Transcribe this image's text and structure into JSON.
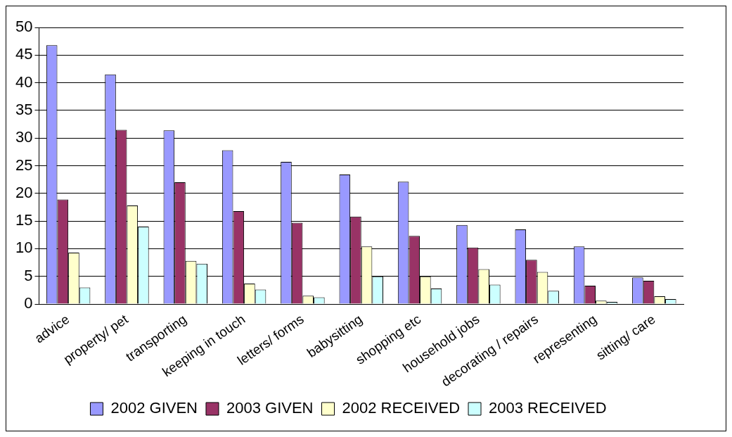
{
  "chart_data": {
    "type": "bar",
    "categories": [
      "advice",
      "property/ pet",
      "transporting",
      "keeping in touch",
      "letters/ forms",
      "babysitting",
      "shopping etc",
      "household jobs",
      "decorating / repairs",
      "representing",
      "sitting/ care"
    ],
    "series": [
      {
        "name": "2002 GIVEN",
        "color": "#9999ff",
        "values": [
          46.8,
          41.5,
          31.4,
          27.8,
          25.7,
          23.4,
          22.1,
          14.3,
          13.5,
          10.4,
          4.8
        ]
      },
      {
        "name": "2003 GIVEN",
        "color": "#993366",
        "values": [
          18.9,
          31.5,
          22,
          16.8,
          14.7,
          15.8,
          12.3,
          10.2,
          8,
          3.3,
          4.2
        ]
      },
      {
        "name": "2002 RECEIVED",
        "color": "#ffffcc",
        "values": [
          9.3,
          17.8,
          7.8,
          3.7,
          1.5,
          10.4,
          5,
          6.3,
          5.8,
          0.6,
          1.4
        ]
      },
      {
        "name": "2003 RECEIVED",
        "color": "#ccffff",
        "values": [
          3,
          14,
          7.3,
          2.6,
          1.2,
          5,
          2.8,
          3.5,
          2.4,
          0.4,
          0.9
        ]
      }
    ],
    "ylim": [
      0,
      50
    ],
    "yticks": [
      0,
      5,
      10,
      15,
      20,
      25,
      30,
      35,
      40,
      45,
      50
    ],
    "grid": "y",
    "legend": "bottom"
  }
}
